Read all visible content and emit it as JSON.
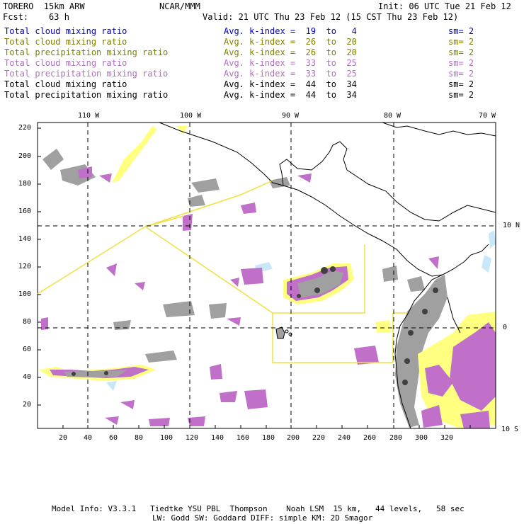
{
  "header": {
    "model": "TORERO  15km ARW",
    "center": "NCAR/MMM",
    "init": "Init: 06 UTC Tue 21 Feb 12",
    "fcst": "Fcst:    63 h",
    "valid": "Valid: 21 UTC Thu 23 Feb 12 (15 CST Thu 23 Feb 12)"
  },
  "legend": [
    {
      "field": "Total cloud mixing ratio",
      "kindex": "Avg. k-index =  19  to   4",
      "sm": "sm= 2",
      "color": "#0000cc"
    },
    {
      "field": "Total cloud mixing ratio",
      "kindex": "Avg. k-index =  26  to  20",
      "sm": "sm= 2",
      "color": "#808000"
    },
    {
      "field": "Total precipitation mixing ratio",
      "kindex": "Avg. k-index =  26  to  20",
      "sm": "sm= 2",
      "color": "#808000"
    },
    {
      "field": "Total cloud mixing ratio",
      "kindex": "Avg. k-index =  33  to  25",
      "sm": "sm= 2",
      "color": "#b070c0"
    },
    {
      "field": "Total precipitation mixing ratio",
      "kindex": "Avg. k-index =  33  to  25",
      "sm": "sm= 2",
      "color": "#b070c0"
    },
    {
      "field": "Total cloud mixing ratio",
      "kindex": "Avg. k-index =  44  to  34",
      "sm": "sm= 2",
      "color": "#000000"
    },
    {
      "field": "Total precipitation mixing ratio",
      "kindex": "Avg. k-index =  44  to  34",
      "sm": "sm= 2",
      "color": "#000000"
    }
  ],
  "axes": {
    "lon_labels": [
      "110 W",
      "100 W",
      "90 W",
      "80 W",
      "70 W"
    ],
    "lat_labels": [
      "10 N",
      "0",
      "10 S"
    ],
    "x_ticks": [
      "20",
      "40",
      "60",
      "80",
      "100",
      "120",
      "140",
      "160",
      "180",
      "200",
      "220",
      "240",
      "260",
      "280",
      "300",
      "320"
    ],
    "y_ticks": [
      "220",
      "200",
      "180",
      "160",
      "140",
      "120",
      "100",
      "80",
      "60",
      "40",
      "20"
    ]
  },
  "footer": {
    "line1": "Model Info: V3.3.1   Tiedtke YSU PBL  Thompson    Noah LSM  15 km,   44 levels,   58 sec",
    "line2": "LW: Godd SW: Goddard DIFF: simple KM: 2D Smagor"
  },
  "colors": {
    "cloud_low": "#ffff80",
    "cloud_mid": "#c070c8",
    "cloud_high": "#a0a0a0",
    "cloud_peak": "#404040",
    "light_blue": "#c8e8f8",
    "domain_box": "#f0e040"
  }
}
